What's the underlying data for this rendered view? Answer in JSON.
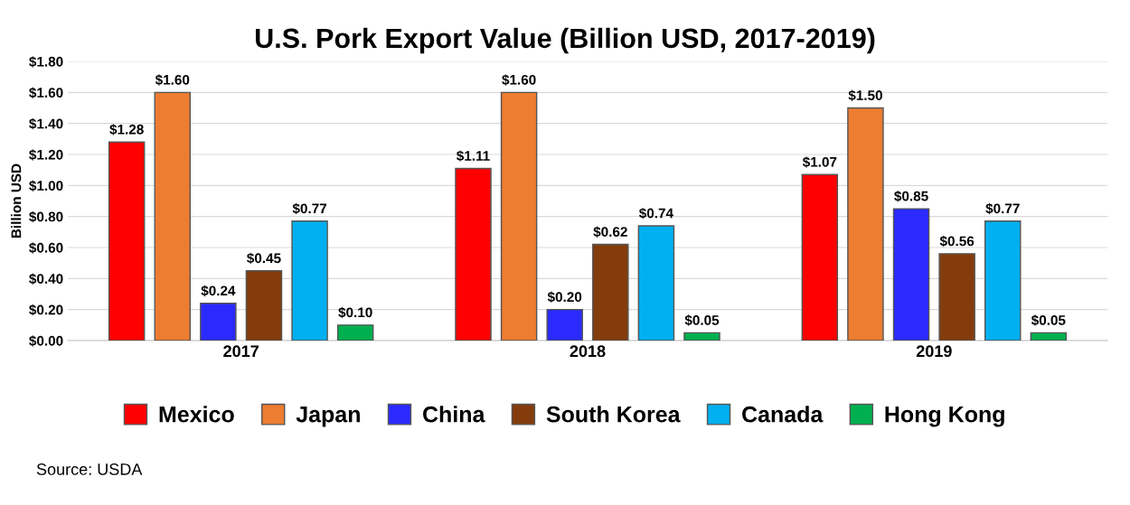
{
  "chart_data": {
    "type": "bar",
    "title": "U.S. Pork Export Value (Billion USD, 2017-2019)",
    "ylabel": "Billion USD",
    "categories": [
      "2017",
      "2018",
      "2019"
    ],
    "series": [
      {
        "name": "Mexico",
        "color": "#ff0000",
        "values": [
          1.28,
          1.11,
          1.07
        ],
        "value_labels": [
          "$1.28",
          "$1.11",
          "$1.07"
        ]
      },
      {
        "name": "Japan",
        "color": "#ed7d31",
        "values": [
          1.6,
          1.6,
          1.5
        ],
        "value_labels": [
          "$1.60",
          "$1.60",
          "$1.50"
        ]
      },
      {
        "name": "China",
        "color": "#2a2aff",
        "values": [
          0.24,
          0.2,
          0.85
        ],
        "value_labels": [
          "$0.24",
          "$0.20",
          "$0.85"
        ]
      },
      {
        "name": "South Korea",
        "color": "#843c0c",
        "values": [
          0.45,
          0.62,
          0.56
        ],
        "value_labels": [
          "$0.45",
          "$0.62",
          "$0.56"
        ]
      },
      {
        "name": "Canada",
        "color": "#00b0f0",
        "values": [
          0.77,
          0.74,
          0.77
        ],
        "value_labels": [
          "$0.77",
          "$0.74",
          "$0.77"
        ]
      },
      {
        "name": "Hong Kong",
        "color": "#00b050",
        "values": [
          0.1,
          0.05,
          0.05
        ],
        "value_labels": [
          "$0.10",
          "$0.05",
          "$0.05"
        ]
      }
    ],
    "ylim": [
      0,
      1.8
    ],
    "yticks": [
      {
        "value": 0,
        "label": "$0.00"
      },
      {
        "value": 0.2,
        "label": "$0.20"
      },
      {
        "value": 0.4,
        "label": "$0.40"
      },
      {
        "value": 0.6,
        "label": "$0.60"
      },
      {
        "value": 0.8,
        "label": "$0.80"
      },
      {
        "value": 1.0,
        "label": "$1.00"
      },
      {
        "value": 1.2,
        "label": "$1.20"
      },
      {
        "value": 1.4,
        "label": "$1.40"
      },
      {
        "value": 1.6,
        "label": "$1.60"
      },
      {
        "value": 1.8,
        "label": "$1.80"
      }
    ],
    "grid": "y",
    "legend": "bottom",
    "annotations": [
      "Source: USDA"
    ]
  }
}
